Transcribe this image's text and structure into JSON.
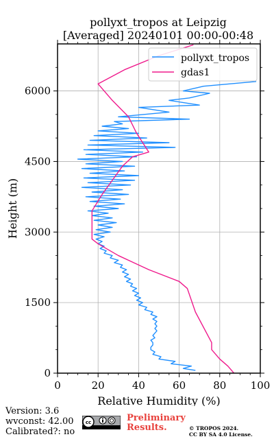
{
  "chart_data": {
    "type": "line",
    "title": "pollyxt_tropos at Leipzig",
    "subtitle": "[Averaged] 20240101 00:00-00:48",
    "xlabel": "Relative Humidity (%)",
    "ylabel": "Height (m)",
    "xlim": [
      0,
      100
    ],
    "ylim": [
      0,
      7000
    ],
    "x_ticks": [
      "0",
      "20",
      "40",
      "60",
      "80",
      "100"
    ],
    "y_ticks": [
      "0",
      "1500",
      "3000",
      "4500",
      "6000"
    ],
    "grid": true,
    "legend_position": "top-right",
    "series": [
      {
        "name": "pollyxt_tropos",
        "color": "#1f8fff",
        "points": [
          [
            68,
            60
          ],
          [
            62,
            100
          ],
          [
            66,
            150
          ],
          [
            56,
            200
          ],
          [
            58,
            250
          ],
          [
            50,
            300
          ],
          [
            51,
            350
          ],
          [
            47,
            400
          ],
          [
            48,
            450
          ],
          [
            46,
            500
          ],
          [
            46,
            550
          ],
          [
            47,
            600
          ],
          [
            47,
            650
          ],
          [
            46,
            700
          ],
          [
            48,
            750
          ],
          [
            47,
            800
          ],
          [
            48,
            850
          ],
          [
            49,
            900
          ],
          [
            48,
            950
          ],
          [
            49,
            1000
          ],
          [
            48,
            1050
          ],
          [
            49,
            1100
          ],
          [
            47,
            1150
          ],
          [
            49,
            1200
          ],
          [
            46,
            1250
          ],
          [
            47,
            1300
          ],
          [
            43,
            1350
          ],
          [
            44,
            1400
          ],
          [
            40,
            1450
          ],
          [
            42,
            1500
          ],
          [
            39,
            1550
          ],
          [
            41,
            1600
          ],
          [
            38,
            1650
          ],
          [
            40,
            1700
          ],
          [
            37,
            1750
          ],
          [
            39,
            1800
          ],
          [
            36,
            1850
          ],
          [
            37,
            1900
          ],
          [
            34,
            1950
          ],
          [
            36,
            2000
          ],
          [
            33,
            2050
          ],
          [
            35,
            2100
          ],
          [
            32,
            2150
          ],
          [
            34,
            2200
          ],
          [
            31,
            2250
          ],
          [
            32,
            2300
          ],
          [
            28,
            2350
          ],
          [
            30,
            2400
          ],
          [
            26,
            2450
          ],
          [
            27,
            2500
          ],
          [
            23,
            2550
          ],
          [
            24,
            2600
          ],
          [
            21,
            2650
          ],
          [
            23,
            2700
          ],
          [
            20,
            2750
          ],
          [
            22,
            2800
          ],
          [
            19,
            2850
          ],
          [
            23,
            2900
          ],
          [
            18,
            2950
          ],
          [
            26,
            3000
          ],
          [
            19,
            3050
          ],
          [
            27,
            3100
          ],
          [
            20,
            3150
          ],
          [
            29,
            3200
          ],
          [
            18,
            3250
          ],
          [
            27,
            3300
          ],
          [
            17,
            3350
          ],
          [
            25,
            3400
          ],
          [
            15,
            3450
          ],
          [
            30,
            3500
          ],
          [
            18,
            3550
          ],
          [
            33,
            3600
          ],
          [
            16,
            3650
          ],
          [
            31,
            3700
          ],
          [
            14,
            3750
          ],
          [
            35,
            3800
          ],
          [
            17,
            3850
          ],
          [
            32,
            3900
          ],
          [
            12,
            3950
          ],
          [
            36,
            4000
          ],
          [
            15,
            4050
          ],
          [
            38,
            4100
          ],
          [
            13,
            4150
          ],
          [
            40,
            4200
          ],
          [
            16,
            4250
          ],
          [
            33,
            4300
          ],
          [
            12,
            4350
          ],
          [
            38,
            4400
          ],
          [
            14,
            4450
          ],
          [
            32,
            4500
          ],
          [
            10,
            4550
          ],
          [
            39,
            4600
          ],
          [
            14,
            4650
          ],
          [
            42,
            4700
          ],
          [
            13,
            4750
          ],
          [
            58,
            4800
          ],
          [
            15,
            4850
          ],
          [
            55,
            4900
          ],
          [
            16,
            4950
          ],
          [
            44,
            5000
          ],
          [
            18,
            5050
          ],
          [
            40,
            5100
          ],
          [
            20,
            5150
          ],
          [
            35,
            5200
          ],
          [
            22,
            5250
          ],
          [
            32,
            5300
          ],
          [
            28,
            5350
          ],
          [
            65,
            5400
          ],
          [
            30,
            5450
          ],
          [
            55,
            5550
          ],
          [
            40,
            5650
          ],
          [
            70,
            5700
          ],
          [
            55,
            5800
          ],
          [
            65,
            5850
          ],
          [
            75,
            5950
          ],
          [
            62,
            6000
          ],
          [
            72,
            6100
          ],
          [
            98,
            6200
          ]
        ]
      },
      {
        "name": "gdas1",
        "color": "#ef1a8c",
        "points": [
          [
            87,
            0
          ],
          [
            84,
            150
          ],
          [
            80,
            300
          ],
          [
            76,
            500
          ],
          [
            76,
            650
          ],
          [
            68,
            1300
          ],
          [
            64,
            1800
          ],
          [
            60,
            1950
          ],
          [
            45,
            2200
          ],
          [
            30,
            2500
          ],
          [
            20,
            2750
          ],
          [
            17,
            2850
          ],
          [
            17,
            3050
          ],
          [
            17,
            3450
          ],
          [
            22,
            3800
          ],
          [
            27,
            4100
          ],
          [
            32,
            4400
          ],
          [
            37,
            4600
          ],
          [
            45,
            4700
          ],
          [
            39,
            5100
          ],
          [
            35,
            5450
          ],
          [
            27,
            5800
          ],
          [
            20,
            6150
          ],
          [
            33,
            6450
          ],
          [
            50,
            6750
          ],
          [
            67,
            6980
          ]
        ]
      }
    ]
  },
  "footer": {
    "version": "Version: 3.6",
    "wvconst": "wvconst:  42.00",
    "calibrated": "Calibrated?: no",
    "preliminary_line1": "Preliminary",
    "preliminary_line2": "Results.",
    "copyright_line1": "© TROPOS 2024.",
    "copyright_line2": "CC BY SA 4.0 License.",
    "license_logo": "cc-by-sa-logo"
  }
}
